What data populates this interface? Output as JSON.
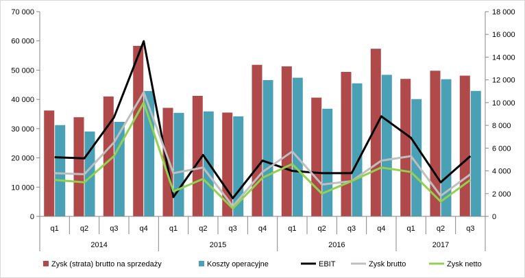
{
  "chart_data": {
    "type": "bar",
    "y_left": {
      "ylim": [
        0,
        70000
      ],
      "ticks": [
        "0",
        "10 000",
        "20 000",
        "30 000",
        "40 000",
        "50 000",
        "60 000",
        "70 000"
      ]
    },
    "y_right": {
      "ylim": [
        0,
        18000
      ],
      "ticks": [
        "0",
        "2 000",
        "4 000",
        "6 000",
        "8 000",
        "10 000",
        "12 000",
        "14 000",
        "16 000",
        "18 000"
      ]
    },
    "grid": false,
    "legend_position": "bottom",
    "categories": [
      "q1",
      "q2",
      "q3",
      "q4",
      "q1",
      "q2",
      "q3",
      "q4",
      "q1",
      "q2",
      "q3",
      "q4",
      "q1",
      "q2",
      "q3"
    ],
    "groups": [
      {
        "label": "2014",
        "count": 4
      },
      {
        "label": "2015",
        "count": 4
      },
      {
        "label": "2016",
        "count": 4
      },
      {
        "label": "2017",
        "count": 3
      }
    ],
    "series": [
      {
        "name": "Zysk (strata) brutto na sprzedaży",
        "kind": "bar",
        "axis": "left",
        "color": "#b04a4a",
        "values": [
          36200,
          33900,
          41000,
          58300,
          37100,
          41200,
          35500,
          51800,
          51300,
          40600,
          49400,
          57300,
          47000,
          49800,
          48100
        ]
      },
      {
        "name": "Koszty operacyjne",
        "kind": "bar",
        "axis": "left",
        "color": "#4aa1b5",
        "values": [
          31200,
          29000,
          32300,
          42900,
          35400,
          35900,
          34200,
          46600,
          47400,
          36800,
          45500,
          48400,
          40100,
          46900,
          42900
        ]
      },
      {
        "name": "EBIT",
        "kind": "line",
        "axis": "right",
        "color": "#000000",
        "values": [
          5200,
          5100,
          8700,
          15400,
          1700,
          5400,
          1600,
          4900,
          4000,
          3800,
          3800,
          8800,
          6900,
          3000,
          5300
        ]
      },
      {
        "name": "Zysk brutto",
        "kind": "line",
        "axis": "right",
        "color": "#bfbfbf",
        "values": [
          3800,
          3700,
          6500,
          10900,
          3800,
          4300,
          900,
          3900,
          5700,
          2800,
          3100,
          4900,
          5300,
          1800,
          3700
        ]
      },
      {
        "name": "Zysk netto",
        "kind": "line",
        "axis": "right",
        "color": "#92d050",
        "values": [
          3200,
          3000,
          5300,
          10000,
          2200,
          3300,
          700,
          3400,
          4600,
          2000,
          3100,
          4300,
          3900,
          1300,
          3200
        ]
      }
    ]
  }
}
